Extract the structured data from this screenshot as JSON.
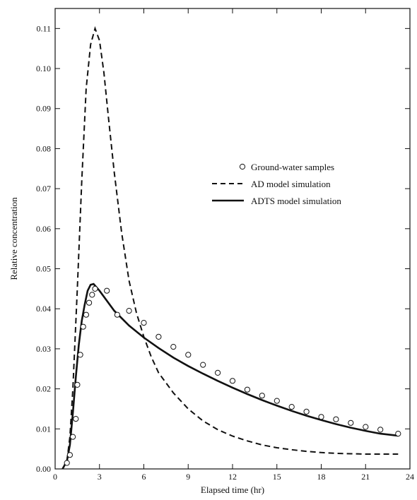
{
  "chart_data": {
    "type": "line",
    "title": "",
    "xlabel": "Elapsed time (hr)",
    "ylabel": "Relative concentration",
    "xlim": [
      0,
      24
    ],
    "ylim": [
      0,
      0.115
    ],
    "x_ticks": [
      0,
      3,
      6,
      9,
      12,
      15,
      18,
      21,
      24
    ],
    "x_tick_labels": [
      "0",
      "3",
      "6",
      "9",
      "12",
      "15",
      "18",
      "21",
      "24"
    ],
    "y_ticks": [
      0,
      0.01,
      0.02,
      0.03,
      0.04,
      0.05,
      0.06,
      0.07,
      0.08,
      0.09,
      0.1,
      0.11
    ],
    "y_tick_labels": [
      "0.00",
      "0.01",
      "0.02",
      "0.03",
      "0.04",
      "0.05",
      "0.06",
      "0.07",
      "0.08",
      "0.09",
      "0.10",
      "0.11"
    ],
    "grid": false,
    "legend_position": "right-middle",
    "series": [
      {
        "name": "Ground-water samples",
        "style": "open-circle",
        "x": [
          0.8,
          1.0,
          1.2,
          1.4,
          1.5,
          1.7,
          1.9,
          2.1,
          2.3,
          2.5,
          2.7,
          3.5,
          4.2,
          5.0,
          6.0,
          7.0,
          8.0,
          9.0,
          10.0,
          11.0,
          12.0,
          13.0,
          14.0,
          15.0,
          16.0,
          17.0,
          18.0,
          19.0,
          20.0,
          21.0,
          22.0,
          23.2
        ],
        "y": [
          0.0015,
          0.0035,
          0.008,
          0.0125,
          0.021,
          0.0285,
          0.0355,
          0.0385,
          0.0415,
          0.0435,
          0.045,
          0.0445,
          0.0385,
          0.0395,
          0.0365,
          0.033,
          0.0305,
          0.0285,
          0.026,
          0.024,
          0.022,
          0.0198,
          0.0183,
          0.017,
          0.0155,
          0.0143,
          0.013,
          0.0124,
          0.0115,
          0.0105,
          0.0098,
          0.0088
        ]
      },
      {
        "name": "AD model simulation",
        "style": "dashed",
        "x": [
          0.5,
          0.8,
          1.0,
          1.2,
          1.5,
          1.8,
          2.1,
          2.4,
          2.7,
          3.0,
          3.3,
          3.6,
          4.0,
          4.5,
          5.0,
          5.5,
          6.0,
          6.5,
          7.0,
          8.0,
          9.0,
          10.0,
          11.0,
          12.0,
          13.0,
          14.0,
          15.0,
          16.0,
          17.0,
          18.0,
          19.0,
          20.0,
          21.0,
          22.0,
          23.2
        ],
        "y": [
          0.0,
          0.002,
          0.008,
          0.02,
          0.045,
          0.072,
          0.095,
          0.106,
          0.11,
          0.107,
          0.099,
          0.088,
          0.074,
          0.059,
          0.047,
          0.039,
          0.033,
          0.028,
          0.024,
          0.019,
          0.015,
          0.012,
          0.0098,
          0.0082,
          0.007,
          0.006,
          0.0053,
          0.0048,
          0.0044,
          0.0041,
          0.0039,
          0.0038,
          0.0037,
          0.0037,
          0.0037
        ]
      },
      {
        "name": "ADTS model simulation",
        "style": "solid",
        "x": [
          0.5,
          0.8,
          1.0,
          1.2,
          1.4,
          1.6,
          1.8,
          2.0,
          2.2,
          2.4,
          2.6,
          3.0,
          4.0,
          5.0,
          6.0,
          7.0,
          8.0,
          9.0,
          10.0,
          11.0,
          12.0,
          13.0,
          14.0,
          15.0,
          16.0,
          17.0,
          18.0,
          19.0,
          20.0,
          21.0,
          22.0,
          23.2
        ],
        "y": [
          0.0,
          0.002,
          0.006,
          0.014,
          0.023,
          0.031,
          0.037,
          0.041,
          0.0445,
          0.046,
          0.0462,
          0.0445,
          0.0395,
          0.0358,
          0.0328,
          0.0302,
          0.0278,
          0.0257,
          0.0238,
          0.022,
          0.0203,
          0.0187,
          0.0172,
          0.0158,
          0.0145,
          0.0133,
          0.0122,
          0.0112,
          0.0103,
          0.0095,
          0.0088,
          0.0083
        ]
      }
    ]
  }
}
